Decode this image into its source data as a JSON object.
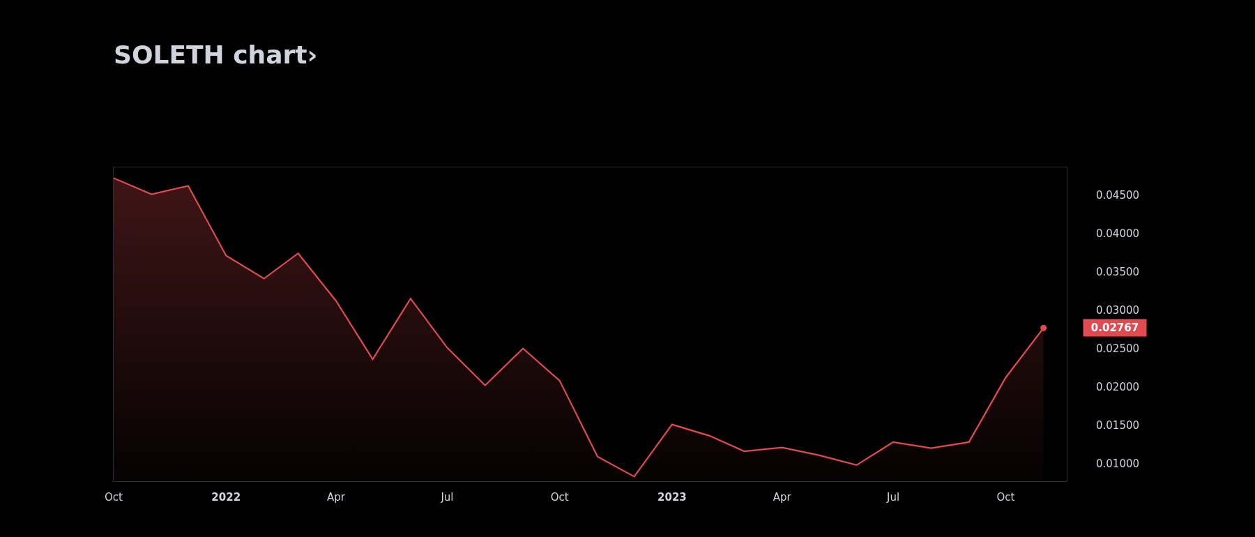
{
  "chart_data": {
    "type": "area",
    "title": "SOLETH chart›",
    "x": [
      "2021-10",
      "2021-11",
      "2021-12",
      "2022-01",
      "2022-02",
      "2022-03",
      "2022-04",
      "2022-05",
      "2022-06",
      "2022-07",
      "2022-08",
      "2022-09",
      "2022-10",
      "2022-11",
      "2022-12",
      "2023-01",
      "2023-02",
      "2023-03",
      "2023-04",
      "2023-05",
      "2023-06",
      "2023-07",
      "2023-08",
      "2023-09",
      "2023-10",
      "2023-11"
    ],
    "series": [
      {
        "color": "#e04b50",
        "values": [
          0.0472,
          0.0451,
          0.0462,
          0.0371,
          0.0341,
          0.0374,
          0.0312,
          0.0236,
          0.0315,
          0.0251,
          0.0202,
          0.025,
          0.0208,
          0.0109,
          0.0083,
          0.0151,
          0.0136,
          0.0116,
          0.0121,
          0.0111,
          0.0098,
          0.0128,
          0.012,
          0.0128,
          0.0212,
          0.02767
        ]
      }
    ],
    "xlim": [
      "2021-10-01",
      "2023-11-20"
    ],
    "xticks": [
      {
        "value": "2021-10",
        "label": "Oct"
      },
      {
        "value": "2022-01",
        "label": "2022"
      },
      {
        "value": "2022-04",
        "label": "Apr"
      },
      {
        "value": "2022-07",
        "label": "Jul"
      },
      {
        "value": "2022-10",
        "label": "Oct"
      },
      {
        "value": "2023-01",
        "label": "2023"
      },
      {
        "value": "2023-04",
        "label": "Apr"
      },
      {
        "value": "2023-07",
        "label": "Jul"
      },
      {
        "value": "2023-10",
        "label": "Oct"
      }
    ],
    "ylim": [
      0.0077,
      0.0486
    ],
    "yticks": [
      {
        "value": 0.01,
        "label": "0.01000"
      },
      {
        "value": 0.015,
        "label": "0.01500"
      },
      {
        "value": 0.02,
        "label": "0.02000"
      },
      {
        "value": 0.025,
        "label": "0.02500"
      },
      {
        "value": 0.03,
        "label": "0.03000"
      },
      {
        "value": 0.035,
        "label": "0.03500"
      },
      {
        "value": 0.04,
        "label": "0.04000"
      },
      {
        "value": 0.045,
        "label": "0.04500"
      }
    ],
    "annotations": [
      "0.02767"
    ]
  }
}
